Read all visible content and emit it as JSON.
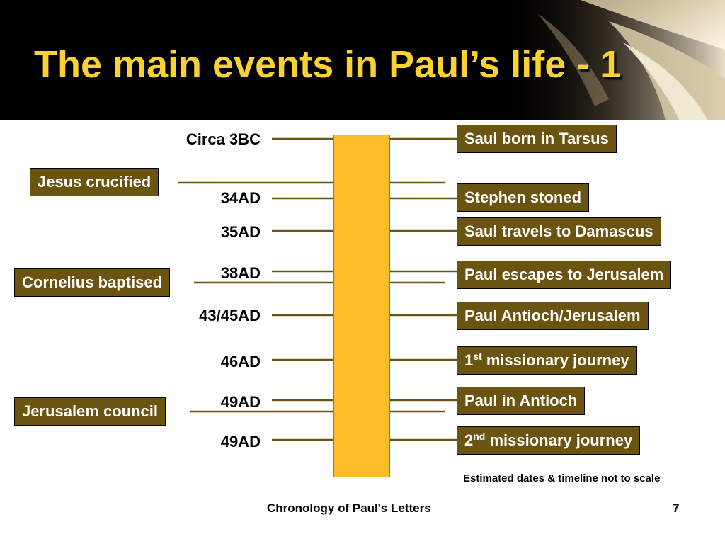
{
  "slide": {
    "title": "The main events in Paul’s life - 1",
    "note": "Estimated dates & timeline not to scale",
    "footer": "Chronology of Paul's Letters",
    "page_number": "7"
  },
  "timeline": {
    "dates": [
      "Circa 3BC",
      "34AD",
      "35AD",
      "38AD",
      "43/45AD",
      "46AD",
      "49AD",
      "49AD"
    ],
    "right_events": [
      {
        "text": "Saul born in Tarsus"
      },
      {
        "text": "Stephen stoned"
      },
      {
        "text": "Saul travels to Damascus"
      },
      {
        "text": "Paul escapes to Jerusalem"
      },
      {
        "text": "Paul Antioch/Jerusalem"
      },
      {
        "prefix": "1",
        "sup": "st",
        "text": " missionary journey"
      },
      {
        "text": "Paul in Antioch"
      },
      {
        "prefix": "2",
        "sup": "nd",
        "text": " missionary journey"
      }
    ],
    "left_events": [
      "Jesus crucified",
      "Cornelius baptised",
      "Jerusalem council"
    ]
  },
  "colors": {
    "title": "#f9d130",
    "bar": "#fcbe28",
    "event_box": "#6b5410",
    "line": "#6b5410"
  }
}
